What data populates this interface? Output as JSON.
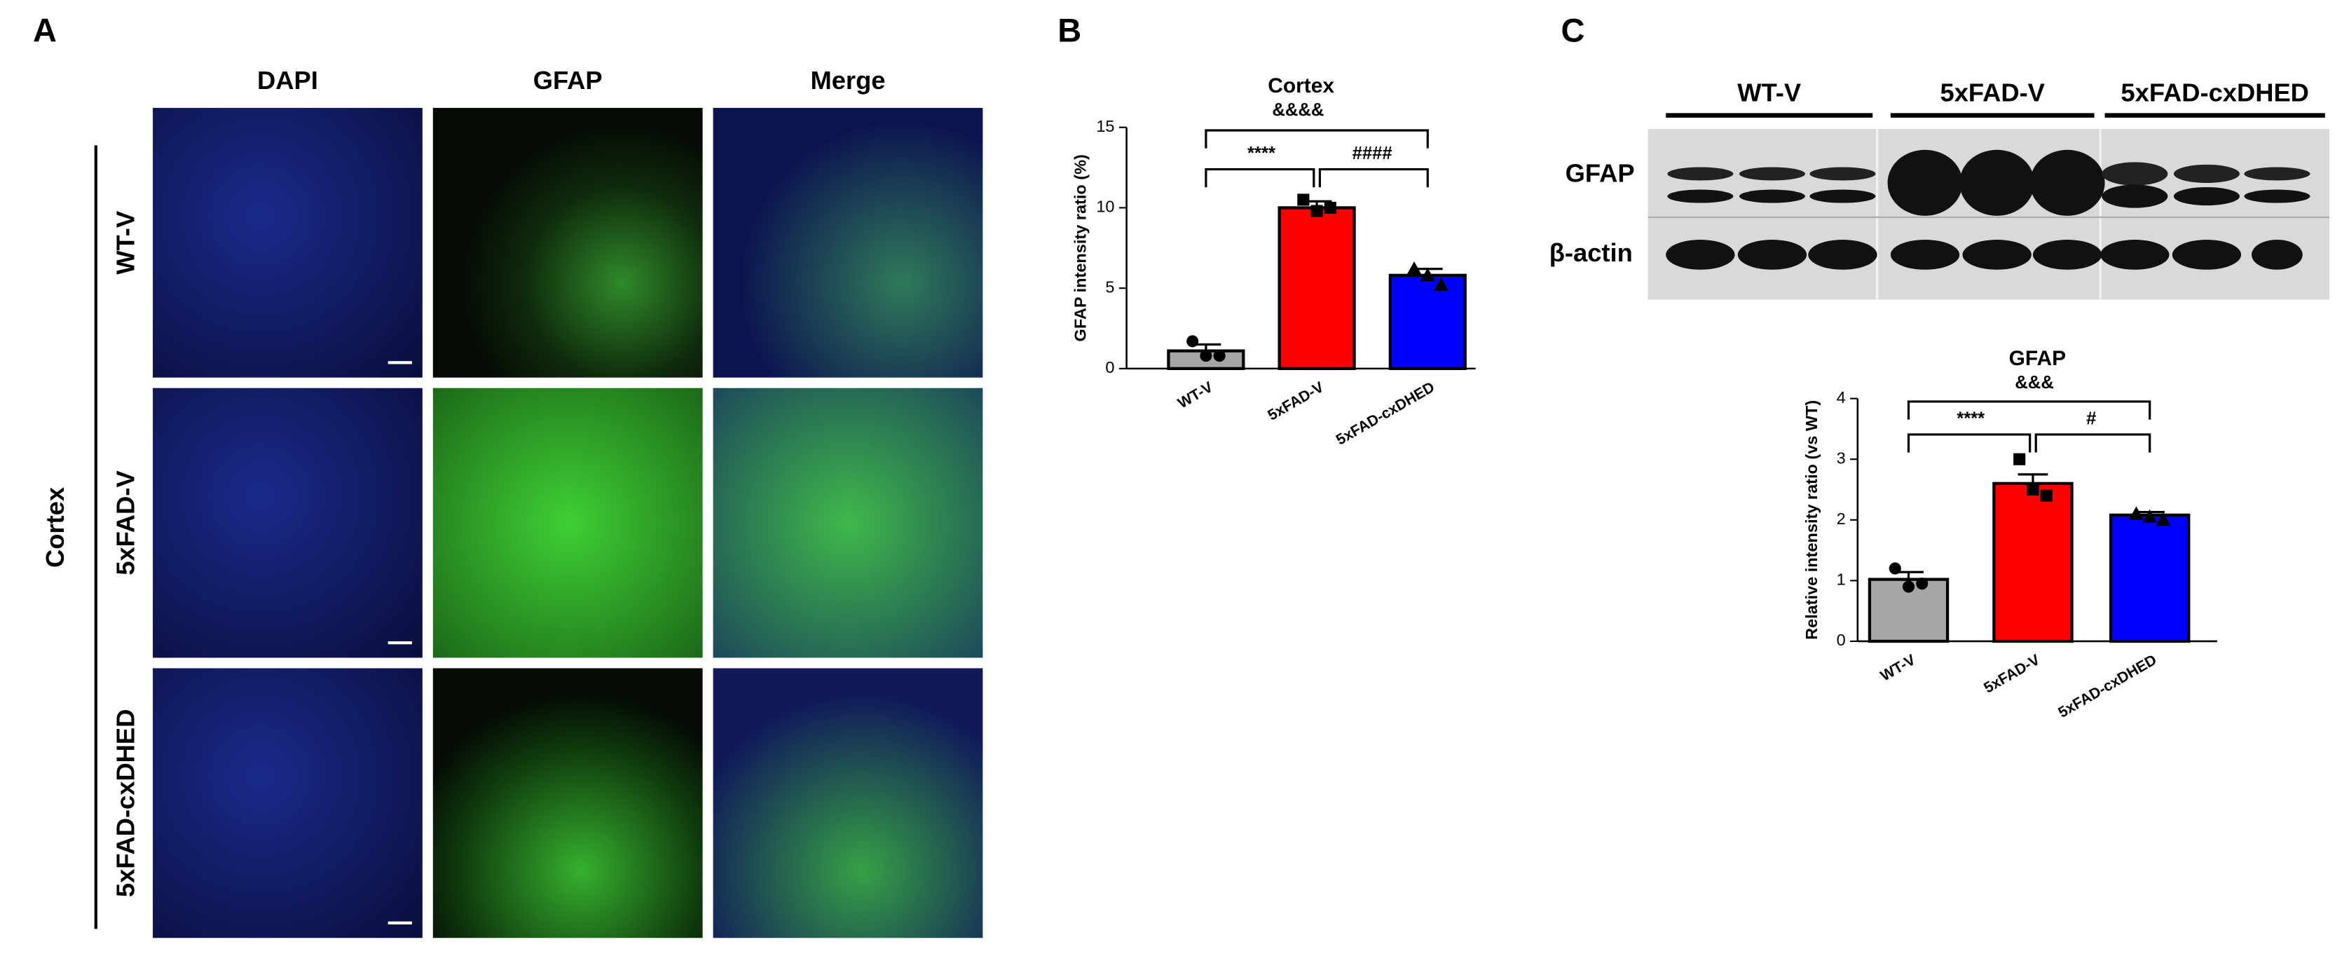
{
  "figure": {
    "panel_labels": [
      "A",
      "B",
      "C"
    ],
    "panel_a": {
      "columns": [
        "DAPI",
        "GFAP",
        "Merge"
      ],
      "region": "Cortex",
      "rows": [
        "WT-V",
        "5xFAD-V",
        "5xFAD-cxDHED"
      ]
    },
    "panel_c_blot": {
      "groups": [
        "WT-V",
        "5xFAD-V",
        "5xFAD-cxDHED"
      ],
      "bands": [
        "GFAP",
        "β-actin"
      ]
    }
  },
  "chart_data": [
    {
      "type": "bar",
      "title": "Cortex",
      "ylabel": "GFAP intensity ratio (%)",
      "categories": [
        "WT-V",
        "5xFAD-V",
        "5xFAD-cxDHED"
      ],
      "values": [
        1.1,
        10.0,
        5.8
      ],
      "errors": [
        0.4,
        0.4,
        0.4
      ],
      "points": [
        [
          1.7,
          0.8,
          0.8
        ],
        [
          10.5,
          9.8,
          10.0
        ],
        [
          6.2,
          5.8,
          5.2
        ]
      ],
      "colors": [
        "#a6a6a6",
        "#ff0000",
        "#0000ff"
      ],
      "ylim": [
        0,
        15
      ],
      "yticks": [
        0,
        5,
        10,
        15
      ],
      "annotations": [
        "&&&&",
        "****",
        "####"
      ]
    },
    {
      "type": "bar",
      "title": "GFAP",
      "ylabel": "Relative intensity ratio (vs WT)",
      "categories": [
        "WT-V",
        "5xFAD-V",
        "5xFAD-cxDHED"
      ],
      "values": [
        1.02,
        2.6,
        2.08
      ],
      "errors": [
        0.12,
        0.15,
        0.05
      ],
      "points": [
        [
          1.2,
          0.9,
          0.95
        ],
        [
          3.0,
          2.5,
          2.4
        ],
        [
          2.1,
          2.05,
          2.0
        ]
      ],
      "colors": [
        "#a6a6a6",
        "#ff0000",
        "#0000ff"
      ],
      "ylim": [
        0,
        4
      ],
      "yticks": [
        0,
        1,
        2,
        3,
        4
      ],
      "annotations": [
        "&&&",
        "****",
        "#"
      ]
    }
  ]
}
